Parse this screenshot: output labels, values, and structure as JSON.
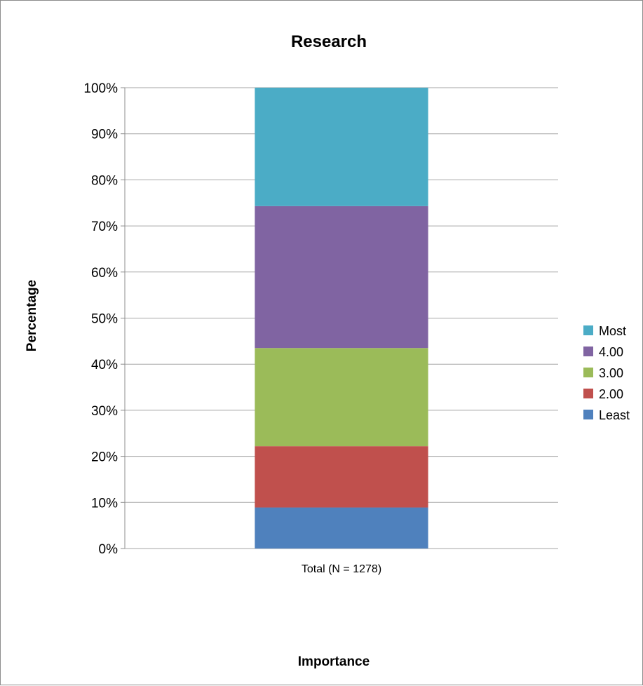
{
  "chart_data": {
    "type": "bar",
    "stacked": true,
    "normalized": true,
    "title": "Research",
    "xlabel": "Importance",
    "ylabel": "Percentage",
    "categories": [
      "Total (N = 1278)"
    ],
    "ylim": [
      0,
      100
    ],
    "yticks": [
      "0%",
      "10%",
      "20%",
      "30%",
      "40%",
      "50%",
      "60%",
      "70%",
      "80%",
      "90%",
      "100%"
    ],
    "series": [
      {
        "name": "Least",
        "values": [
          8.9
        ],
        "color": "#4f81bd"
      },
      {
        "name": "2.00",
        "values": [
          13.3
        ],
        "color": "#c0504d"
      },
      {
        "name": "3.00",
        "values": [
          21.3
        ],
        "color": "#9bbb59"
      },
      {
        "name": "4.00",
        "values": [
          30.8
        ],
        "color": "#8064a2"
      },
      {
        "name": "Most",
        "values": [
          25.7
        ],
        "color": "#4bacc6"
      }
    ],
    "legend_position": "right",
    "grid": true
  }
}
